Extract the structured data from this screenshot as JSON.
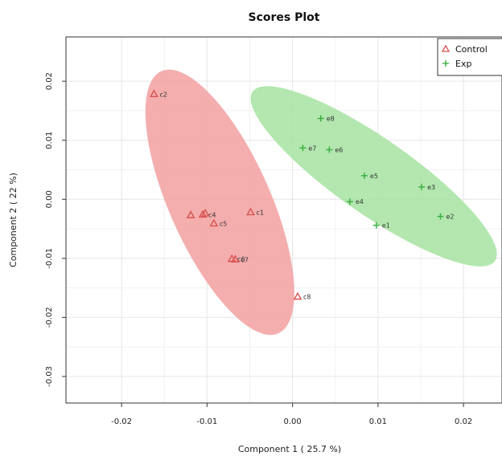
{
  "chart_data": {
    "type": "scatter",
    "title": "Scores Plot",
    "xlabel": "Component 1 ( 25.7 %)",
    "ylabel": "Component 2 ( 22 %)",
    "xlim": [
      -0.0265,
      0.0245
    ],
    "ylim": [
      -0.0345,
      0.0275
    ],
    "x_ticks": [
      -0.02,
      -0.01,
      0.0,
      0.01,
      0.02
    ],
    "x_tick_labels": [
      "-0.02",
      "-0.01",
      "0.00",
      "0.01",
      "0.02"
    ],
    "y_ticks": [
      -0.03,
      -0.02,
      -0.01,
      0.0,
      0.01,
      0.02
    ],
    "y_tick_labels": [
      "-0.03",
      "-0.02",
      "-0.01",
      "0.00",
      "0.01",
      "0.02"
    ],
    "grid": true,
    "legend_position": "top-right",
    "series": [
      {
        "name": "Control",
        "marker": "triangle",
        "color": "#d9534f",
        "ellipse_color": "#f2a0a0",
        "points": [
          {
            "x": -0.0162,
            "y": 0.0178,
            "label": "c2"
          },
          {
            "x": -0.0119,
            "y": -0.0027,
            "label": ""
          },
          {
            "x": -0.0105,
            "y": -0.0026,
            "label": "c4"
          },
          {
            "x": -0.0102,
            "y": -0.0024,
            "label": ""
          },
          {
            "x": -0.0092,
            "y": -0.0041,
            "label": "c5"
          },
          {
            "x": -0.0049,
            "y": -0.0022,
            "label": "c1"
          },
          {
            "x": -0.0071,
            "y": -0.0101,
            "label": "c6"
          },
          {
            "x": -0.0067,
            "y": -0.0102,
            "label": "c7"
          },
          {
            "x": 0.0006,
            "y": -0.0165,
            "label": "c8"
          }
        ]
      },
      {
        "name": "Exp",
        "marker": "plus",
        "color": "#3cb043",
        "ellipse_color": "#a6e3a1",
        "points": [
          {
            "x": 0.0033,
            "y": 0.0137,
            "label": "e8"
          },
          {
            "x": 0.0012,
            "y": 0.0087,
            "label": "e7"
          },
          {
            "x": 0.0043,
            "y": 0.0084,
            "label": "e6"
          },
          {
            "x": 0.0084,
            "y": 0.004,
            "label": "e5"
          },
          {
            "x": 0.0151,
            "y": 0.0021,
            "label": "e3"
          },
          {
            "x": 0.0067,
            "y": -0.0004,
            "label": "e4"
          },
          {
            "x": 0.0173,
            "y": -0.0029,
            "label": "e2"
          },
          {
            "x": 0.0098,
            "y": -0.0044,
            "label": "e1"
          }
        ]
      }
    ],
    "ellipses": [
      {
        "series": "Control",
        "cx": -0.0085,
        "cy": -0.0005,
        "rx": 0.0059,
        "ry": 0.0243,
        "angle_deg": -24
      },
      {
        "series": "Exp",
        "cx": 0.0095,
        "cy": 0.0039,
        "rx": 0.0173,
        "ry": 0.0064,
        "angle_deg": 35
      }
    ]
  }
}
